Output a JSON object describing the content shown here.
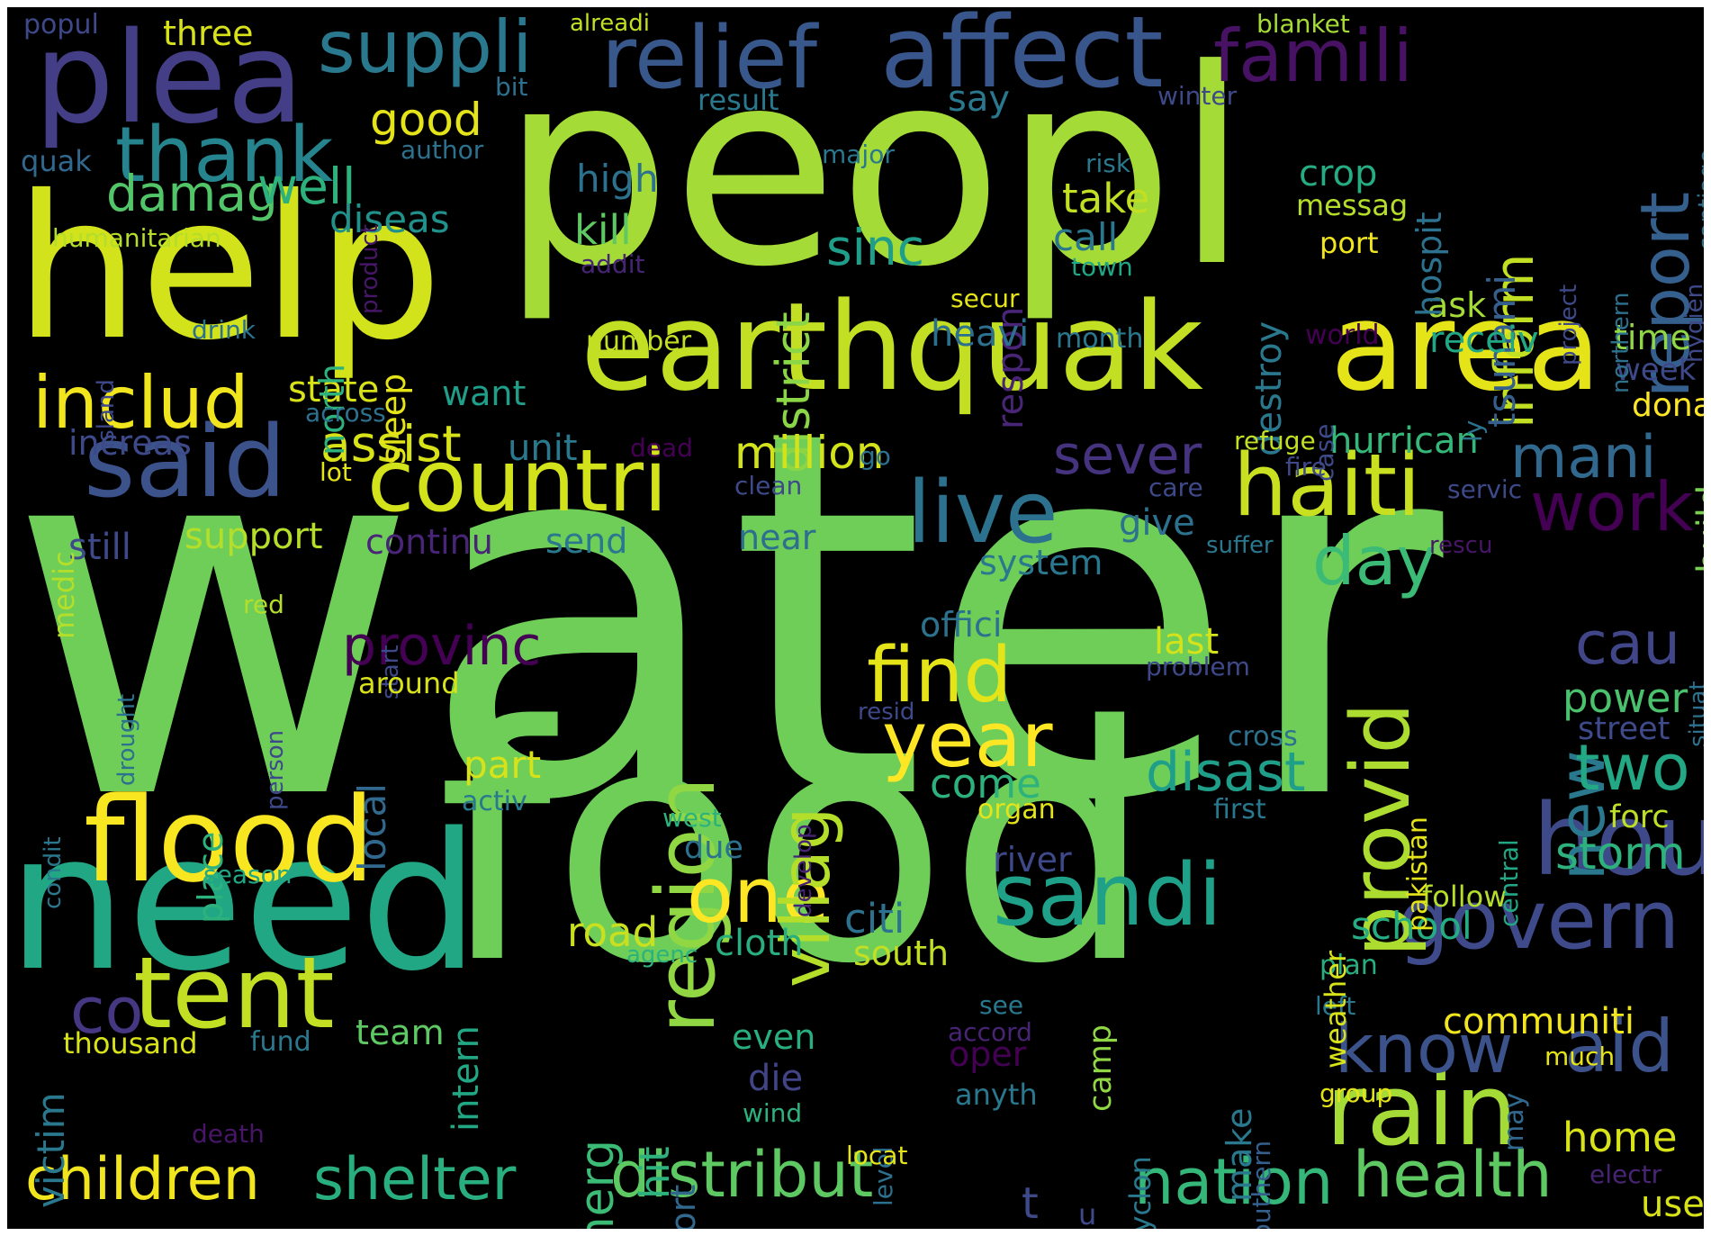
{
  "background": "#000000",
  "colormap": "viridis",
  "words": [
    {
      "id": "water",
      "text": "water",
      "color": "#6ece58"
    },
    {
      "id": "food",
      "text": "food",
      "color": "#6ece58"
    },
    {
      "id": "peopl",
      "text": "peopl",
      "color": "#a5db36"
    },
    {
      "id": "help",
      "text": "help",
      "color": "#d2e21b"
    },
    {
      "id": "need",
      "text": "need",
      "color": "#22a785"
    },
    {
      "id": "earthquak",
      "text": "earthquak",
      "color": "#c2df23"
    },
    {
      "id": "plea",
      "text": "plea",
      "color": "#433e85"
    },
    {
      "id": "area",
      "text": "area",
      "color": "#e5e419"
    },
    {
      "id": "flood",
      "text": "flood",
      "color": "#f8e621"
    },
    {
      "id": "relief",
      "text": "relief",
      "color": "#38588c"
    },
    {
      "id": "affect",
      "text": "affect",
      "color": "#39568c"
    },
    {
      "id": "famili",
      "text": "famili",
      "color": "#471164"
    },
    {
      "id": "suppli",
      "text": "suppli",
      "color": "#2a788e"
    },
    {
      "id": "said",
      "text": "said",
      "color": "#3b528b"
    },
    {
      "id": "countri",
      "text": "countri",
      "color": "#d2e21b"
    },
    {
      "id": "haiti",
      "text": "haiti",
      "color": "#c8e020"
    },
    {
      "id": "live",
      "text": "live",
      "color": "#2c728e"
    },
    {
      "id": "sandi",
      "text": "sandi",
      "color": "#1fa088"
    },
    {
      "id": "tent",
      "text": "tent",
      "color": "#c2df23"
    },
    {
      "id": "rain",
      "text": "rain",
      "color": "#a5db36"
    },
    {
      "id": "govern",
      "text": "govern",
      "color": "#3e4a89"
    },
    {
      "id": "hou",
      "text": "hou",
      "color": "#3e4989"
    },
    {
      "id": "provid",
      "text": "provid",
      "color": "#addc30"
    },
    {
      "id": "region",
      "text": "region",
      "color": "#90d743"
    },
    {
      "id": "thank",
      "text": "thank",
      "color": "#25848e"
    },
    {
      "id": "includ",
      "text": "includ",
      "color": "#f1e51d"
    },
    {
      "id": "find",
      "text": "find",
      "color": "#e5e419"
    },
    {
      "id": "year",
      "text": "year",
      "color": "#fde725"
    },
    {
      "id": "one",
      "text": "one",
      "color": "#fde725"
    },
    {
      "id": "report",
      "text": "report",
      "color": "#35608d"
    },
    {
      "id": "work",
      "text": "work",
      "color": "#440154"
    },
    {
      "id": "children",
      "text": "children",
      "color": "#f1e51d"
    },
    {
      "id": "shelter",
      "text": "shelter",
      "color": "#29af7f"
    },
    {
      "id": "distribut",
      "text": "distribut",
      "color": "#5ec962"
    },
    {
      "id": "nation",
      "text": "nation",
      "color": "#35b779"
    },
    {
      "id": "health",
      "text": "health",
      "color": "#5ec962"
    },
    {
      "id": "villag",
      "text": "villag",
      "color": "#b5de2b"
    },
    {
      "id": "aid",
      "text": "aid",
      "color": "#3b528b"
    },
    {
      "id": "know",
      "text": "know",
      "color": "#3b528b"
    },
    {
      "id": "co",
      "text": "co",
      "color": "#453781"
    },
    {
      "id": "new",
      "text": "new",
      "color": "#2a788e"
    },
    {
      "id": "inform",
      "text": "inform",
      "color": "#c2df23"
    },
    {
      "id": "day",
      "text": "day",
      "color": "#3bbb75"
    },
    {
      "id": "damag",
      "text": "damag",
      "color": "#52c569"
    },
    {
      "id": "mani",
      "text": "mani",
      "color": "#31688e"
    },
    {
      "id": "sever",
      "text": "sever",
      "color": "#46337f"
    },
    {
      "id": "cau",
      "text": "cau",
      "color": "#404688"
    },
    {
      "id": "two",
      "text": "two",
      "color": "#22a884"
    },
    {
      "id": "disast",
      "text": "disast",
      "color": "#1f9e89"
    },
    {
      "id": "provinc",
      "text": "provinc",
      "color": "#440154"
    },
    {
      "id": "district",
      "text": "district",
      "color": "#8bd646"
    },
    {
      "id": "million",
      "text": "million",
      "color": "#d2e21b"
    },
    {
      "id": "assist",
      "text": "assist",
      "color": "#d8e219"
    },
    {
      "id": "sinc",
      "text": "sinc",
      "color": "#1f9e89"
    },
    {
      "id": "well",
      "text": "well",
      "color": "#2db27d"
    },
    {
      "id": "good",
      "text": "good",
      "color": "#e5e419"
    },
    {
      "id": "kill",
      "text": "kill",
      "color": "#5ec962"
    },
    {
      "id": "high",
      "text": "high",
      "color": "#2c728e"
    },
    {
      "id": "diseas",
      "text": "diseas",
      "color": "#21918c"
    },
    {
      "id": "take",
      "text": "take",
      "color": "#c2df23"
    },
    {
      "id": "call",
      "text": "call",
      "color": "#2a788e"
    },
    {
      "id": "crop",
      "text": "crop",
      "color": "#25ac82"
    },
    {
      "id": "messag",
      "text": "messag",
      "color": "#b5de2b"
    },
    {
      "id": "port",
      "text": "port",
      "color": "#f1e51d"
    },
    {
      "id": "tsunami",
      "text": "tsunami",
      "color": "#355f8d"
    },
    {
      "id": "destroy",
      "text": "destroy",
      "color": "#2a788e"
    },
    {
      "id": "respon",
      "text": "respon",
      "color": "#482576"
    },
    {
      "id": "state",
      "text": "state",
      "color": "#d8e219"
    },
    {
      "id": "want",
      "text": "want",
      "color": "#1f9e89"
    },
    {
      "id": "unit",
      "text": "unit",
      "color": "#2a788e"
    },
    {
      "id": "increas",
      "text": "increas",
      "color": "#3e4989"
    },
    {
      "id": "support",
      "text": "support",
      "color": "#b5de2b"
    },
    {
      "id": "still",
      "text": "still",
      "color": "#3e4989"
    },
    {
      "id": "continu",
      "text": "continu",
      "color": "#482576"
    },
    {
      "id": "send",
      "text": "send",
      "color": "#2a788e"
    },
    {
      "id": "near",
      "text": "near",
      "color": "#2e6f8e"
    },
    {
      "id": "system",
      "text": "system",
      "color": "#2a788e"
    },
    {
      "id": "give",
      "text": "give",
      "color": "#2c718e"
    },
    {
      "id": "heavi",
      "text": "heavi",
      "color": "#2d708e"
    },
    {
      "id": "receiv",
      "text": "receiv",
      "color": "#22a785"
    },
    {
      "id": "ask",
      "text": "ask",
      "color": "#a5db36"
    },
    {
      "id": "time",
      "text": "time",
      "color": "#8fd744"
    },
    {
      "id": "week",
      "text": "week",
      "color": "#3e4989"
    },
    {
      "id": "donat",
      "text": "donat",
      "color": "#fde725"
    },
    {
      "id": "hurrican",
      "text": "hurrican",
      "color": "#35b779"
    },
    {
      "id": "build",
      "text": "build",
      "color": "#7ad151"
    },
    {
      "id": "power",
      "text": "power",
      "color": "#4ac16d"
    },
    {
      "id": "street",
      "text": "street",
      "color": "#3e4a89"
    },
    {
      "id": "storm",
      "text": "storm",
      "color": "#2db27d"
    },
    {
      "id": "forc",
      "text": "forc",
      "color": "#bddf26"
    },
    {
      "id": "home",
      "text": "home",
      "color": "#d8e219"
    },
    {
      "id": "school",
      "text": "school",
      "color": "#25ac82"
    },
    {
      "id": "communiti",
      "text": "communiti",
      "color": "#f1e51d"
    },
    {
      "id": "road",
      "text": "road",
      "color": "#c8e020"
    },
    {
      "id": "citi",
      "text": "citi",
      "color": "#2c728e"
    },
    {
      "id": "cloth",
      "text": "cloth",
      "color": "#29af7f"
    },
    {
      "id": "south",
      "text": "south",
      "color": "#c2df23"
    },
    {
      "id": "come",
      "text": "come",
      "color": "#2db27d"
    },
    {
      "id": "part",
      "text": "part",
      "color": "#d8e219"
    },
    {
      "id": "due",
      "text": "due",
      "color": "#2c728e"
    },
    {
      "id": "river",
      "text": "river",
      "color": "#3e4989"
    },
    {
      "id": "officí",
      "text": "offici",
      "color": "#2c728e"
    },
    {
      "id": "last",
      "text": "last",
      "color": "#d2e21b"
    },
    {
      "id": "problem",
      "text": "problem",
      "color": "#3e4989"
    },
    {
      "id": "cross",
      "text": "cross",
      "color": "#2c718e"
    },
    {
      "id": "first",
      "text": "first",
      "color": "#2a788e"
    },
    {
      "id": "organ",
      "text": "organ",
      "color": "#e5e419"
    },
    {
      "id": "local",
      "text": "local",
      "color": "#31688e"
    },
    {
      "id": "intern",
      "text": "intern",
      "color": "#22a785"
    },
    {
      "id": "team",
      "text": "team",
      "color": "#5ec962"
    },
    {
      "id": "victim",
      "text": "victim",
      "color": "#2a788e"
    },
    {
      "id": "emerg",
      "text": "emerg",
      "color": "#3bbb75"
    },
    {
      "id": "hit",
      "text": "hit",
      "color": "#2db27d"
    },
    {
      "id": "effort",
      "text": "effort",
      "color": "#31688e"
    },
    {
      "id": "even",
      "text": "even",
      "color": "#29af7f"
    },
    {
      "id": "die",
      "text": "die",
      "color": "#414487"
    },
    {
      "id": "wind",
      "text": "wind",
      "color": "#2db27d"
    },
    {
      "id": "anyth",
      "text": "anyth",
      "color": "#2a788e"
    },
    {
      "id": "oper",
      "text": "oper",
      "color": "#440154"
    },
    {
      "id": "accord",
      "text": "accord",
      "color": "#482475"
    },
    {
      "id": "see",
      "text": "see",
      "color": "#2a788e"
    },
    {
      "id": "make",
      "text": "make",
      "color": "#2a788e"
    },
    {
      "id": "southern",
      "text": "southern",
      "color": "#35608d"
    },
    {
      "id": "cyclon",
      "text": "cyclon",
      "color": "#2a788e"
    },
    {
      "id": "camp",
      "text": "camp",
      "color": "#8fd744"
    },
    {
      "id": "level",
      "text": "level",
      "color": "#2c718e"
    },
    {
      "id": "locat",
      "text": "locat",
      "color": "#e5e419"
    },
    {
      "id": "t",
      "text": "t",
      "color": "#3e4989"
    },
    {
      "id": "u",
      "text": "u",
      "color": "#3e4989"
    },
    {
      "id": "use",
      "text": "use",
      "color": "#d8e219"
    },
    {
      "id": "electr",
      "text": "electr",
      "color": "#482475"
    },
    {
      "id": "group",
      "text": "group",
      "color": "#e5e419"
    },
    {
      "id": "may",
      "text": "may",
      "color": "#31688e"
    },
    {
      "id": "much",
      "text": "much",
      "color": "#e5e419"
    },
    {
      "id": "left",
      "text": "left",
      "color": "#2a788e"
    },
    {
      "id": "plan",
      "text": "plan",
      "color": "#29af7f"
    },
    {
      "id": "weather",
      "text": "weather",
      "color": "#d8e219"
    },
    {
      "id": "follow",
      "text": "follow",
      "color": "#b5de2b"
    },
    {
      "id": "pakistan",
      "text": "pakistan",
      "color": "#e5e419"
    },
    {
      "id": "central",
      "text": "central",
      "color": "#22a785"
    },
    {
      "id": "rescu",
      "text": "rescu",
      "color": "#481668"
    },
    {
      "id": "suffer",
      "text": "suffer",
      "color": "#2a788e"
    },
    {
      "id": "situat",
      "text": "situat",
      "color": "#2c718e"
    },
    {
      "id": "servic",
      "text": "servic",
      "color": "#3e4989"
    },
    {
      "id": "care",
      "text": "care",
      "color": "#3e4989"
    },
    {
      "id": "fire",
      "text": "fire",
      "color": "#3e4989"
    },
    {
      "id": "refuge",
      "text": "refuge",
      "color": "#c2df23"
    },
    {
      "id": "ly",
      "text": "ly",
      "color": "#2c718e"
    },
    {
      "id": "case",
      "text": "case",
      "color": "#3e4989"
    },
    {
      "id": "world",
      "text": "world",
      "color": "#440154"
    },
    {
      "id": "month",
      "text": "month",
      "color": "#2a788e"
    },
    {
      "id": "secur",
      "text": "secur",
      "color": "#e5e419"
    },
    {
      "id": "town",
      "text": "town",
      "color": "#22a785"
    },
    {
      "id": "addit",
      "text": "addit",
      "color": "#482475"
    },
    {
      "id": "number",
      "text": "number",
      "color": "#c2df23"
    },
    {
      "id": "sleep",
      "text": "sleep",
      "color": "#e5e419"
    },
    {
      "id": "north",
      "text": "north",
      "color": "#2db27d"
    },
    {
      "id": "across",
      "text": "across",
      "color": "#2c718e"
    },
    {
      "id": "dead",
      "text": "dead",
      "color": "#440154"
    },
    {
      "id": "clean",
      "text": "clean",
      "color": "#3e4989"
    },
    {
      "id": "go",
      "text": "go",
      "color": "#2c718e"
    },
    {
      "id": "lot",
      "text": "lot",
      "color": "#e5e419"
    },
    {
      "id": "medic",
      "text": "medic",
      "color": "#b5de2b"
    },
    {
      "id": "drink",
      "text": "drink",
      "color": "#2c718e"
    },
    {
      "id": "island",
      "text": "island",
      "color": "#3e4989"
    },
    {
      "id": "humanitarian",
      "text": "humanitarian",
      "color": "#b5de2b"
    },
    {
      "id": "quak",
      "text": "quak",
      "color": "#31688e"
    },
    {
      "id": "author",
      "text": "author",
      "color": "#2c718e"
    },
    {
      "id": "product",
      "text": "product",
      "color": "#481668"
    },
    {
      "id": "bit",
      "text": "bit",
      "color": "#2c718e"
    },
    {
      "id": "popul",
      "text": "popul",
      "color": "#3e4989"
    },
    {
      "id": "three",
      "text": "three",
      "color": "#d8e219"
    },
    {
      "id": "alreadi",
      "text": "alreadi",
      "color": "#c2df23"
    },
    {
      "id": "blanket",
      "text": "blanket",
      "color": "#a5db36"
    },
    {
      "id": "result",
      "text": "result",
      "color": "#2a788e"
    },
    {
      "id": "say",
      "text": "say",
      "color": "#2a788e"
    },
    {
      "id": "major",
      "text": "major",
      "color": "#2a788e"
    },
    {
      "id": "risk",
      "text": "risk",
      "color": "#2a788e"
    },
    {
      "id": "winter",
      "text": "winter",
      "color": "#3e4989"
    },
    {
      "id": "hospit",
      "text": "hospit",
      "color": "#2c718e"
    },
    {
      "id": "project",
      "text": "project",
      "color": "#3e4989"
    },
    {
      "id": "northern",
      "text": "northern",
      "color": "#2c718e"
    },
    {
      "id": "hygien",
      "text": "hygien",
      "color": "#3e4989"
    },
    {
      "id": "santiago",
      "text": "santiago",
      "color": "#2c718e"
    },
    {
      "id": "drought",
      "text": "drought",
      "color": "#2c718e"
    },
    {
      "id": "person",
      "text": "person",
      "color": "#3e4989"
    },
    {
      "id": "start",
      "text": "start",
      "color": "#3e4989"
    },
    {
      "id": "red",
      "text": "red",
      "color": "#b5de2b"
    },
    {
      "id": "around",
      "text": "around",
      "color": "#d8e219"
    },
    {
      "id": "condit",
      "text": "condit",
      "color": "#2a788e"
    },
    {
      "id": "place",
      "text": "place",
      "color": "#2db27d"
    },
    {
      "id": "activ",
      "text": "activ",
      "color": "#2a788e"
    },
    {
      "id": "season",
      "text": "season",
      "color": "#22a785"
    },
    {
      "id": "thousand",
      "text": "thousand",
      "color": "#d8e219"
    },
    {
      "id": "fund",
      "text": "fund",
      "color": "#2a788e"
    },
    {
      "id": "death",
      "text": "death",
      "color": "#481668"
    },
    {
      "id": "agenc",
      "text": "agenc",
      "color": "#2db27d"
    },
    {
      "id": "west",
      "text": "west",
      "color": "#2db27d"
    },
    {
      "id": "develop",
      "text": "develop",
      "color": "#482475"
    },
    {
      "id": "resid",
      "text": "resid",
      "color": "#3e4989"
    }
  ]
}
